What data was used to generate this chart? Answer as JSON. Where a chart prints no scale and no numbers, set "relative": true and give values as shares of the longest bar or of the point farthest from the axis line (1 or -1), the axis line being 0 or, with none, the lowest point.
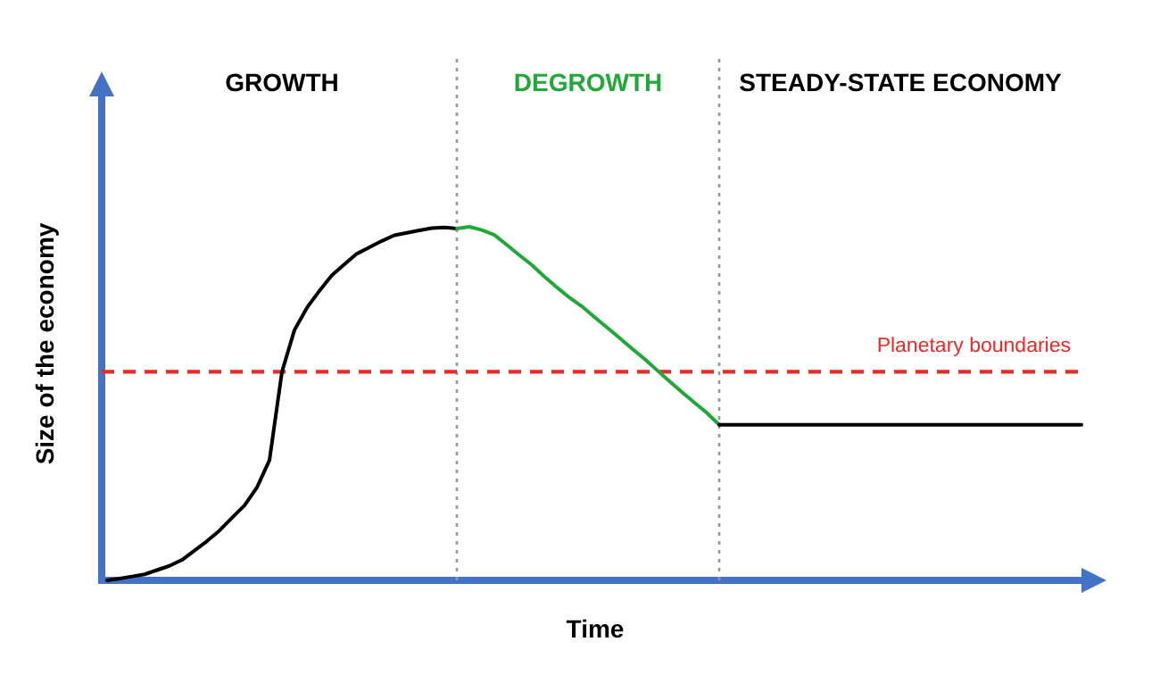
{
  "chart_data": {
    "type": "line",
    "relative": true,
    "xlabel": "Time",
    "ylabel": "Size of the economy",
    "categories": [
      null,
      null,
      null,
      null,
      null,
      null,
      null,
      null,
      null,
      null,
      null,
      null,
      null,
      null,
      null,
      null,
      null,
      null,
      null,
      null,
      null,
      null,
      null,
      null,
      null,
      null,
      null,
      null,
      null,
      null,
      null,
      null,
      null,
      null,
      null,
      null,
      null,
      null,
      null,
      null,
      null,
      null,
      null,
      null,
      null,
      null,
      null,
      null,
      null,
      null,
      null,
      null,
      null,
      null,
      null,
      null,
      null,
      null,
      null,
      null,
      null,
      null,
      null,
      null,
      null,
      null,
      null,
      null,
      null,
      null,
      null,
      null,
      null,
      null,
      null,
      null,
      null,
      null,
      null
    ],
    "series": [
      {
        "color": "#000000",
        "values": [
          0,
          0.005,
          0.011,
          0.017,
          0.029,
          0.041,
          0.058,
          0.084,
          0.111,
          0.141,
          0.177,
          0.212,
          0.263,
          0.34,
          0.59,
          0.708,
          0.771,
          0.819,
          0.863,
          0.894,
          0.924,
          0.942,
          0.96,
          0.976,
          0.983,
          0.99,
          0.996,
          0.998,
          0.995,
          null,
          null,
          null,
          null,
          null,
          null,
          null,
          null,
          null,
          null,
          null,
          null,
          null,
          null,
          null,
          null,
          null,
          null,
          null,
          null,
          null,
          null,
          null,
          null,
          null,
          null,
          null,
          null,
          null,
          null,
          null,
          null,
          null,
          null,
          null,
          null,
          null,
          null,
          null,
          null,
          null,
          null,
          null,
          null,
          null,
          null,
          null,
          null,
          null,
          null
        ]
      },
      {
        "color": "#22a83a",
        "values": [
          null,
          null,
          null,
          null,
          null,
          null,
          null,
          null,
          null,
          null,
          null,
          null,
          null,
          null,
          null,
          null,
          null,
          null,
          null,
          null,
          null,
          null,
          null,
          null,
          null,
          null,
          null,
          null,
          0.995,
          1.0,
          0.991,
          0.977,
          0.949,
          0.92,
          0.892,
          0.859,
          0.829,
          0.8,
          0.775,
          0.745,
          0.716,
          0.686,
          0.656,
          0.627,
          0.595,
          0.564,
          0.533,
          0.503,
          0.474,
          0.44,
          null,
          null,
          null,
          null,
          null,
          null,
          null,
          null,
          null,
          null,
          null,
          null,
          null,
          null,
          null,
          null,
          null,
          null,
          null,
          null,
          null,
          null,
          null,
          null,
          null,
          null,
          null,
          null,
          null
        ]
      },
      {
        "color": "#000000",
        "values": [
          null,
          null,
          null,
          null,
          null,
          null,
          null,
          null,
          null,
          null,
          null,
          null,
          null,
          null,
          null,
          null,
          null,
          null,
          null,
          null,
          null,
          null,
          null,
          null,
          null,
          null,
          null,
          null,
          null,
          null,
          null,
          null,
          null,
          null,
          null,
          null,
          null,
          null,
          null,
          null,
          null,
          null,
          null,
          null,
          null,
          null,
          null,
          null,
          null,
          0.44,
          0.44,
          0.44,
          0.44,
          0.44,
          0.44,
          0.44,
          0.44,
          0.44,
          0.44,
          0.44,
          0.44,
          0.44,
          0.44,
          0.44,
          0.44,
          0.44,
          0.44,
          0.44,
          0.44,
          0.44,
          0.44,
          0.44,
          0.44,
          0.44,
          0.44,
          0.44,
          0.44,
          0.44,
          0.44
        ]
      }
    ],
    "ref_lines": [
      {
        "axis": "y",
        "value": 0.59,
        "label": "Planetary boundaries",
        "color": "#e82a2a",
        "line_style": "dashed"
      }
    ],
    "annotations": [
      "GROWTH",
      "DEGROWTH",
      "STEADY-STATE ECONOMY"
    ]
  }
}
